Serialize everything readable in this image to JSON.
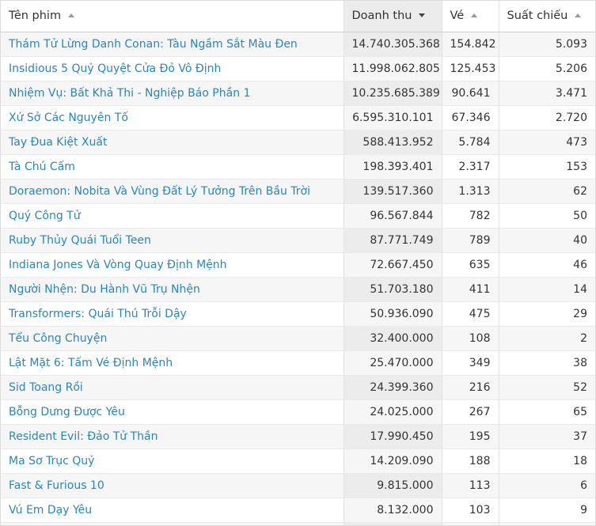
{
  "table": {
    "headers": {
      "name": "Tên phim",
      "revenue": "Doanh thu",
      "tickets": "Vé",
      "screenings": "Suất chiếu"
    },
    "sort_column": "revenue",
    "sort_direction": "descending",
    "rows": [
      {
        "name": "Thám Tử Lừng Danh Conan: Tàu Ngầm Sắt Màu Đen",
        "revenue": "14.740.305.368",
        "tickets": "154.842",
        "screenings": "5.093"
      },
      {
        "name": "Insidious 5 Quỷ Quyệt Cửa Đỏ Vô Định",
        "revenue": "11.998.062.805",
        "tickets": "125.453",
        "screenings": "5.206"
      },
      {
        "name": "Nhiệm Vụ: Bất Khả Thi - Nghiệp Báo Phần 1",
        "revenue": "10.235.685.389",
        "tickets": "90.641",
        "screenings": "3.471"
      },
      {
        "name": "Xứ Sở Các Nguyên Tố",
        "revenue": "6.595.310.101",
        "tickets": "67.346",
        "screenings": "2.720"
      },
      {
        "name": "Tay Đua Kiệt Xuất",
        "revenue": "588.413.952",
        "tickets": "5.784",
        "screenings": "473"
      },
      {
        "name": "Tà Chú Cấm",
        "revenue": "198.393.401",
        "tickets": "2.317",
        "screenings": "153"
      },
      {
        "name": "Doraemon: Nobita Và Vùng Đất Lý Tưởng Trên Bầu Trời",
        "revenue": "139.517.360",
        "tickets": "1.313",
        "screenings": "62"
      },
      {
        "name": "Quý Công Tử",
        "revenue": "96.567.844",
        "tickets": "782",
        "screenings": "50"
      },
      {
        "name": "Ruby Thủy Quái Tuổi Teen",
        "revenue": "87.771.749",
        "tickets": "789",
        "screenings": "40"
      },
      {
        "name": "Indiana Jones Và Vòng Quay Định Mệnh",
        "revenue": "72.667.450",
        "tickets": "635",
        "screenings": "46"
      },
      {
        "name": "Người Nhện: Du Hành Vũ Trụ Nhện",
        "revenue": "51.703.180",
        "tickets": "411",
        "screenings": "14"
      },
      {
        "name": "Transformers: Quái Thú Trỗi Dậy",
        "revenue": "50.936.090",
        "tickets": "475",
        "screenings": "29"
      },
      {
        "name": "Tểu Công Chuyện",
        "revenue": "32.400.000",
        "tickets": "108",
        "screenings": "2"
      },
      {
        "name": "Lật Mặt 6: Tấm Vé Định Mệnh",
        "revenue": "25.470.000",
        "tickets": "349",
        "screenings": "38"
      },
      {
        "name": "Sid Toang Rồi",
        "revenue": "24.399.360",
        "tickets": "216",
        "screenings": "52"
      },
      {
        "name": "Bỗng Dưng Được Yêu",
        "revenue": "24.025.000",
        "tickets": "267",
        "screenings": "65"
      },
      {
        "name": "Resident Evil: Đảo Tử Thần",
        "revenue": "17.990.450",
        "tickets": "195",
        "screenings": "37"
      },
      {
        "name": "Ma Sơ Trục Quỷ",
        "revenue": "14.209.090",
        "tickets": "188",
        "screenings": "18"
      },
      {
        "name": "Fast & Furious 10",
        "revenue": "9.815.000",
        "tickets": "113",
        "screenings": "6"
      },
      {
        "name": "Vú Em Dạy Yêu",
        "revenue": "8.132.000",
        "tickets": "103",
        "screenings": "9"
      },
      {
        "name": "",
        "revenue": "",
        "tickets": "",
        "screenings": ""
      }
    ]
  },
  "colors": {
    "link": "#2a86b8",
    "text": "#333333",
    "sorted_header_bg": "#ececec",
    "stripe_bg": "#f6f6f6"
  }
}
